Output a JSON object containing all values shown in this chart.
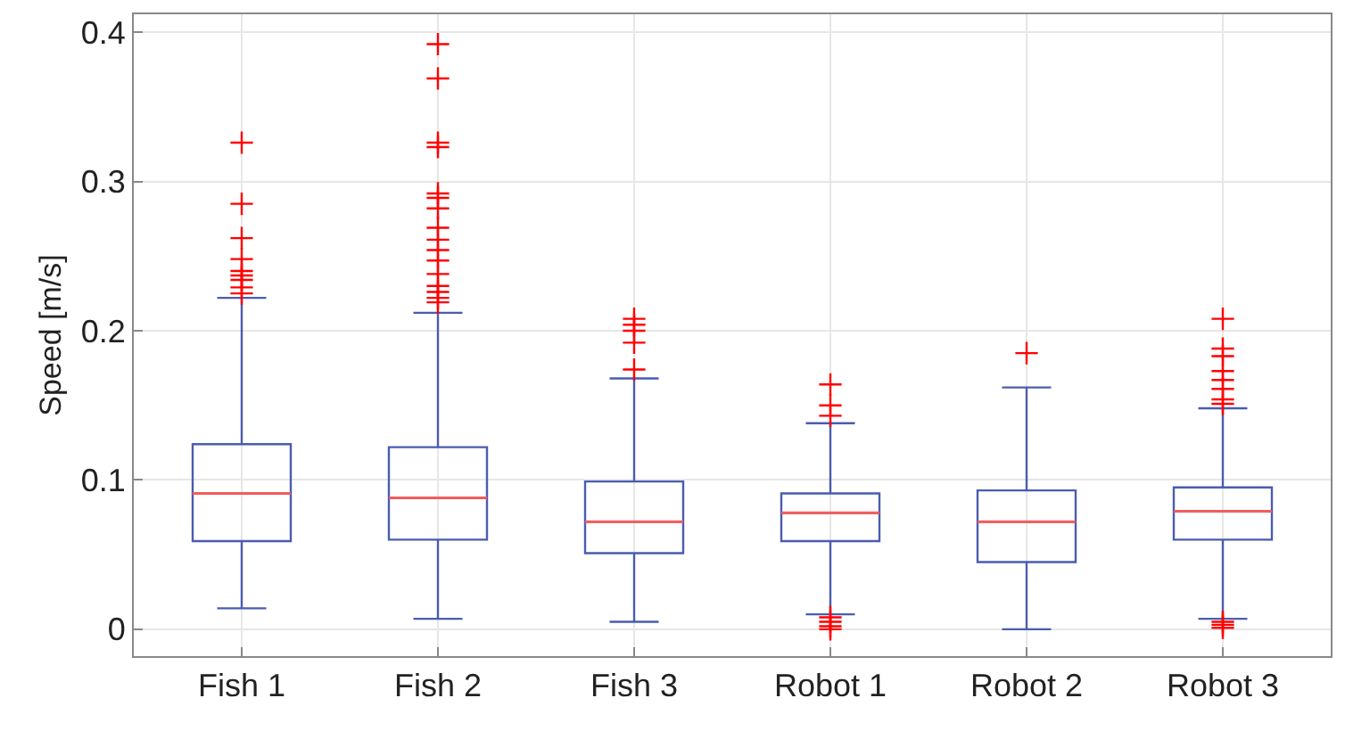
{
  "chart_data": {
    "type": "box",
    "ylabel": "Speed [m/s]",
    "categories": [
      "Fish 1",
      "Fish 2",
      "Fish 3",
      "Robot 1",
      "Robot 2",
      "Robot 3"
    ],
    "series": [
      {
        "color": "#4a5cb0",
        "boxes": [
          {
            "low": 0.014,
            "q1": 0.059,
            "median": 0.091,
            "q3": 0.124,
            "high": 0.222,
            "outliers": [
              0.326,
              0.285,
              0.262,
              0.248,
              0.24,
              0.237,
              0.234,
              0.229,
              0.225
            ]
          },
          {
            "low": 0.007,
            "q1": 0.06,
            "median": 0.088,
            "q3": 0.122,
            "high": 0.212,
            "outliers": [
              0.392,
              0.369,
              0.326,
              0.323,
              0.292,
              0.289,
              0.282,
              0.269,
              0.261,
              0.254,
              0.247,
              0.238,
              0.23,
              0.226,
              0.222,
              0.219
            ]
          },
          {
            "low": 0.005,
            "q1": 0.051,
            "median": 0.072,
            "q3": 0.099,
            "high": 0.168,
            "outliers": [
              0.208,
              0.204,
              0.2,
              0.192,
              0.174
            ]
          },
          {
            "low": 0.01,
            "q1": 0.059,
            "median": 0.078,
            "q3": 0.091,
            "high": 0.138,
            "outliers": [
              0.164,
              0.15,
              0.143,
              0.008,
              0.005,
              0.002,
              0.0
            ]
          },
          {
            "low": 0.0,
            "q1": 0.045,
            "median": 0.072,
            "q3": 0.093,
            "high": 0.162,
            "outliers": [
              0.185
            ]
          },
          {
            "low": 0.007,
            "q1": 0.06,
            "median": 0.079,
            "q3": 0.095,
            "high": 0.148,
            "outliers": [
              0.208,
              0.188,
              0.183,
              0.173,
              0.167,
              0.161,
              0.154,
              0.151,
              0.005,
              0.003,
              0.001
            ]
          }
        ]
      }
    ],
    "ylim": [
      -0.018,
      0.412
    ],
    "yticks": [
      0,
      0.1,
      0.2,
      0.3,
      0.4
    ],
    "grid": true,
    "marker": "cross"
  }
}
